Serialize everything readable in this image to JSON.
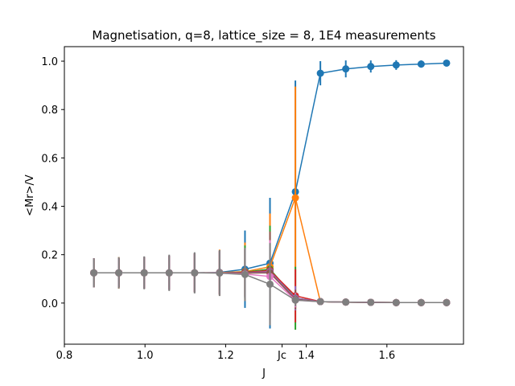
{
  "chart_data": {
    "type": "line",
    "title": "Magnetisation, q=8, lattice_size = 8, 1E4 measurements",
    "xlabel": "J",
    "ylabel": "<Mr>/V",
    "xlim": [
      0.8,
      1.79
    ],
    "ylim": [
      -0.17,
      1.06
    ],
    "x_ticks": [
      {
        "value": 0.8,
        "label": "0.8"
      },
      {
        "value": 1.0,
        "label": "1.0"
      },
      {
        "value": 1.2,
        "label": "1.2"
      },
      {
        "value": 1.34,
        "label": "Jc"
      },
      {
        "value": 1.4,
        "label": "1.4"
      },
      {
        "value": 1.6,
        "label": "1.6"
      }
    ],
    "y_ticks": [
      {
        "value": 0.0,
        "label": "0.0"
      },
      {
        "value": 0.2,
        "label": "0.2"
      },
      {
        "value": 0.4,
        "label": "0.4"
      },
      {
        "value": 0.6,
        "label": "0.6"
      },
      {
        "value": 0.8,
        "label": "0.8"
      },
      {
        "value": 1.0,
        "label": "1.0"
      }
    ],
    "grid": false,
    "legend": "none",
    "x": [
      0.873,
      0.935,
      0.998,
      1.06,
      1.123,
      1.185,
      1.248,
      1.31,
      1.373,
      1.435,
      1.498,
      1.56,
      1.623,
      1.685,
      1.748
    ],
    "series": [
      {
        "color": "#1f77b4",
        "values": [
          0.125,
          0.125,
          0.125,
          0.125,
          0.125,
          0.127,
          0.14,
          0.165,
          0.46,
          0.95,
          0.968,
          0.978,
          0.984,
          0.988,
          0.992
        ],
        "errors": [
          0.06,
          0.06,
          0.065,
          0.07,
          0.08,
          0.09,
          0.16,
          0.27,
          0.46,
          0.05,
          0.035,
          0.025,
          0.02,
          0.015,
          0.01
        ]
      },
      {
        "color": "#ff7f0e",
        "values": [
          0.125,
          0.125,
          0.125,
          0.125,
          0.125,
          0.126,
          0.13,
          0.15,
          0.435,
          0.006,
          0.004,
          0.003,
          0.002,
          0.002,
          0.002
        ],
        "errors": [
          0.06,
          0.065,
          0.065,
          0.07,
          0.08,
          0.095,
          0.12,
          0.22,
          0.46,
          0.005,
          0.004,
          0.003,
          0.003,
          0.002,
          0.002
        ]
      },
      {
        "color": "#2ca02c",
        "values": [
          0.125,
          0.125,
          0.125,
          0.125,
          0.125,
          0.125,
          0.128,
          0.14,
          0.02,
          0.006,
          0.004,
          0.003,
          0.002,
          0.002,
          0.002
        ],
        "errors": [
          0.06,
          0.06,
          0.065,
          0.07,
          0.08,
          0.09,
          0.11,
          0.18,
          0.13,
          0.005,
          0.004,
          0.003,
          0.003,
          0.002,
          0.002
        ]
      },
      {
        "color": "#d62728",
        "values": [
          0.125,
          0.125,
          0.125,
          0.125,
          0.125,
          0.125,
          0.127,
          0.135,
          0.03,
          0.006,
          0.004,
          0.003,
          0.002,
          0.002,
          0.002
        ],
        "errors": [
          0.06,
          0.06,
          0.065,
          0.07,
          0.08,
          0.09,
          0.1,
          0.16,
          0.11,
          0.005,
          0.004,
          0.003,
          0.003,
          0.002,
          0.002
        ]
      },
      {
        "color": "#9467bd",
        "values": [
          0.125,
          0.125,
          0.125,
          0.125,
          0.125,
          0.125,
          0.125,
          0.13,
          0.02,
          0.006,
          0.004,
          0.003,
          0.002,
          0.002,
          0.002
        ],
        "errors": [
          0.06,
          0.06,
          0.065,
          0.07,
          0.08,
          0.09,
          0.1,
          0.15,
          0.05,
          0.005,
          0.004,
          0.003,
          0.003,
          0.002,
          0.002
        ]
      },
      {
        "color": "#8c564b",
        "values": [
          0.125,
          0.125,
          0.125,
          0.125,
          0.125,
          0.125,
          0.124,
          0.125,
          0.015,
          0.006,
          0.004,
          0.003,
          0.002,
          0.002,
          0.002
        ],
        "errors": [
          0.06,
          0.06,
          0.065,
          0.07,
          0.08,
          0.09,
          0.1,
          0.17,
          0.04,
          0.005,
          0.004,
          0.003,
          0.003,
          0.002,
          0.002
        ]
      },
      {
        "color": "#e377c2",
        "values": [
          0.125,
          0.125,
          0.125,
          0.125,
          0.125,
          0.125,
          0.12,
          0.11,
          0.012,
          0.006,
          0.004,
          0.003,
          0.002,
          0.002,
          0.002
        ],
        "errors": [
          0.06,
          0.06,
          0.065,
          0.07,
          0.08,
          0.09,
          0.1,
          0.15,
          0.03,
          0.005,
          0.004,
          0.003,
          0.003,
          0.002,
          0.002
        ]
      },
      {
        "color": "#7f7f7f",
        "values": [
          0.125,
          0.125,
          0.125,
          0.125,
          0.125,
          0.124,
          0.118,
          0.078,
          0.012,
          0.006,
          0.004,
          0.003,
          0.002,
          0.002,
          0.002
        ],
        "errors": [
          0.06,
          0.065,
          0.068,
          0.075,
          0.085,
          0.095,
          0.11,
          0.17,
          0.025,
          0.005,
          0.004,
          0.003,
          0.003,
          0.002,
          0.002
        ]
      }
    ]
  }
}
